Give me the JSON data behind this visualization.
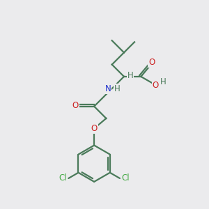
{
  "background_color": "#ebebed",
  "bond_color": "#4a7a5a",
  "bond_width": 1.6,
  "atom_colors": {
    "C": "#4a7a5a",
    "H": "#4a7a5a",
    "O": "#cc2222",
    "N": "#2233cc",
    "Cl": "#44aa44"
  },
  "font_size": 8.5,
  "figsize": [
    3.0,
    3.0
  ],
  "dpi": 100
}
